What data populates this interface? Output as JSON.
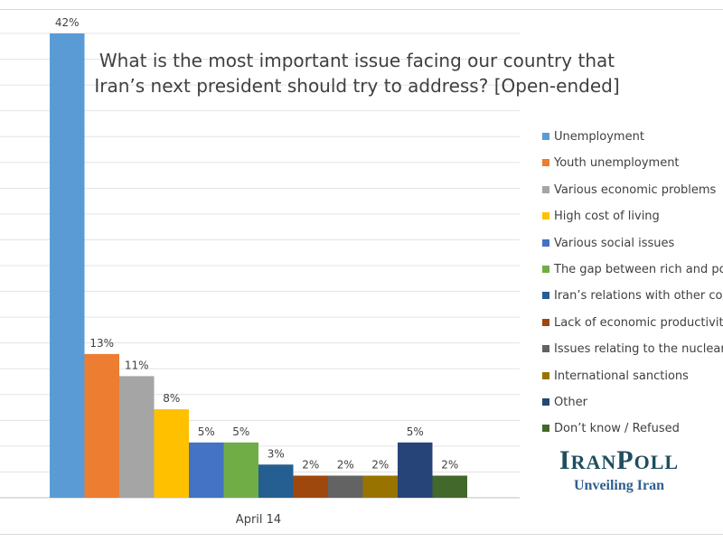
{
  "chart_data": {
    "type": "bar",
    "title": "What is the most important issue facing our country that Iran’s next president should try to address? [Open-ended]",
    "categories": [
      "April 14"
    ],
    "series": [
      {
        "name": "Unemployment",
        "values": [
          42
        ],
        "label": "42%",
        "color": "#5b9bd5"
      },
      {
        "name": "Youth unemployment",
        "values": [
          13
        ],
        "label": "13%",
        "color": "#ed7d31"
      },
      {
        "name": "Various economic problems",
        "values": [
          11
        ],
        "label": "11%",
        "color": "#a5a5a5"
      },
      {
        "name": "High cost of living",
        "values": [
          8
        ],
        "label": "8%",
        "color": "#ffc000"
      },
      {
        "name": "Various social issues",
        "values": [
          5
        ],
        "label": "5%",
        "color": "#4472c4"
      },
      {
        "name": "The gap between rich and poor",
        "values": [
          5
        ],
        "label": "5%",
        "color": "#70ad47"
      },
      {
        "name": "Iran’s relations with other countries",
        "values": [
          3
        ],
        "label": "3%",
        "color": "#255e91"
      },
      {
        "name": "Lack of economic productivity",
        "values": [
          2
        ],
        "label": "2%",
        "color": "#9e480e"
      },
      {
        "name": "Issues relating to the nuclear dispute",
        "values": [
          2
        ],
        "label": "2%",
        "color": "#636363"
      },
      {
        "name": "International sanctions",
        "values": [
          2
        ],
        "label": "2%",
        "color": "#997300"
      },
      {
        "name": "Other",
        "values": [
          5
        ],
        "label": "5%",
        "color": "#264478"
      },
      {
        "name": "Don’t know / Refused",
        "values": [
          2
        ],
        "label": "2%",
        "color": "#43682b"
      }
    ],
    "ylim": [
      0,
      42
    ],
    "grid": true,
    "legend": "right"
  },
  "logo": {
    "name": "IRANPOLL",
    "tagline": "Unveiling Iran"
  }
}
